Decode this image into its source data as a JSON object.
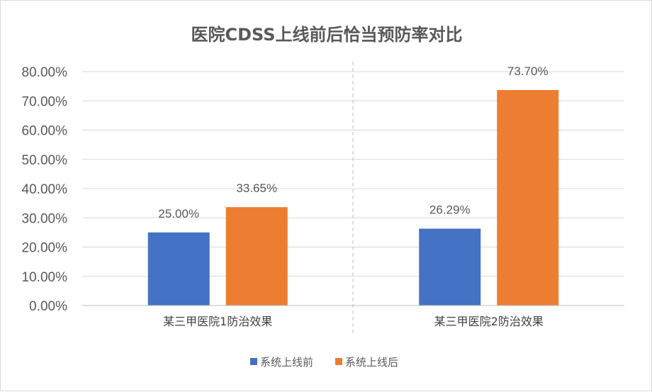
{
  "chart_data": {
    "type": "bar",
    "title": "医院CDSS上线前后恰当预防率对比",
    "categories": [
      "某三甲医院1防治效果",
      "某三甲医院2防治效果"
    ],
    "series": [
      {
        "name": "系统上线前",
        "color": "#4472c4",
        "values": [
          25.0,
          26.29
        ],
        "labels": [
          "25.00%",
          "26.29%"
        ]
      },
      {
        "name": "系统上线后",
        "color": "#ed7d31",
        "values": [
          33.65,
          73.7
        ],
        "labels": [
          "33.65%",
          "73.70%"
        ]
      }
    ],
    "ylim": [
      0,
      80
    ],
    "ystep": 10,
    "ytick_labels": [
      "0.00%",
      "10.00%",
      "20.00%",
      "30.00%",
      "40.00%",
      "50.00%",
      "60.00%",
      "70.00%",
      "80.00%"
    ],
    "grid": true,
    "legend": "bottom-center"
  }
}
